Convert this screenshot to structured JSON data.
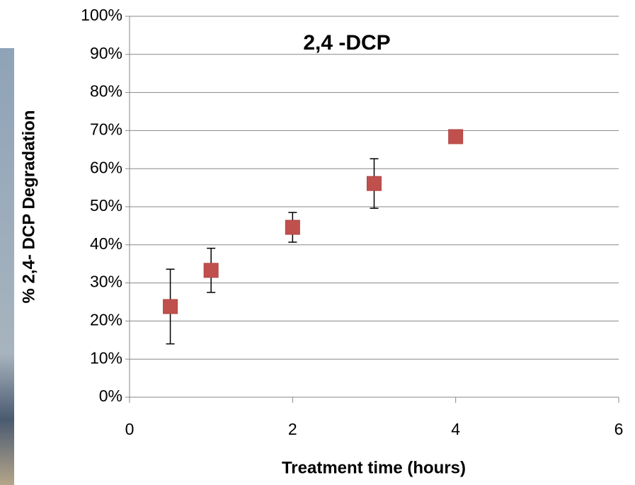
{
  "chart_data": {
    "type": "scatter",
    "title": "2,4 -DCP",
    "x_label": "Treatment time (hours)",
    "y_label": "% 2,4- DCP Degradation",
    "x": [
      0.5,
      1,
      2,
      3,
      4
    ],
    "values": [
      23.8,
      33.3,
      44.6,
      56.1,
      68.4
    ],
    "errors": [
      9.8,
      5.8,
      3.9,
      6.5,
      null
    ],
    "color": "#c0504d",
    "xlim": [
      0,
      6
    ],
    "xticks": [
      0,
      2,
      4,
      6
    ],
    "ylim": [
      0,
      100
    ],
    "yticks": [
      {
        "value": 0,
        "label": "0%"
      },
      {
        "value": 10,
        "label": "10%"
      },
      {
        "value": 20,
        "label": "20%"
      },
      {
        "value": 30,
        "label": "30%"
      },
      {
        "value": 40,
        "label": "40%"
      },
      {
        "value": 50,
        "label": "50%"
      },
      {
        "value": 60,
        "label": "60%"
      },
      {
        "value": 70,
        "label": "70%"
      },
      {
        "value": 80,
        "label": "80%"
      },
      {
        "value": 90,
        "label": "90%"
      },
      {
        "value": 100,
        "label": "100%"
      }
    ],
    "grid": true
  }
}
